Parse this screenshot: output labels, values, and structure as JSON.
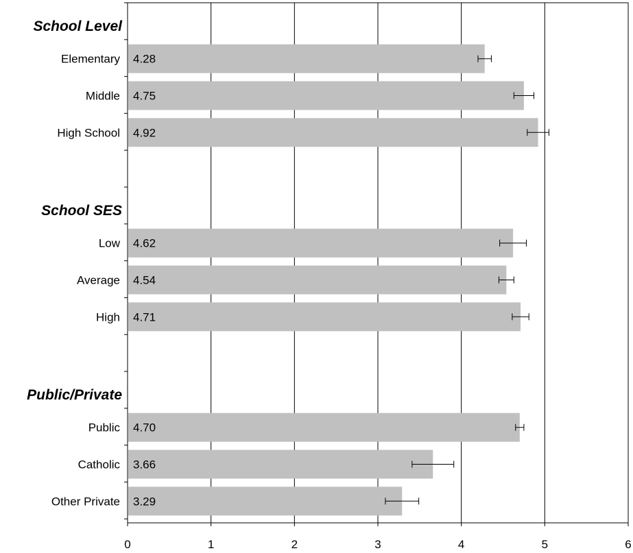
{
  "chart_data": {
    "type": "bar",
    "orientation": "horizontal",
    "xlim": [
      0,
      6
    ],
    "x_ticks": [
      "0",
      "1",
      "2",
      "3",
      "4",
      "5",
      "6"
    ],
    "grid": "vertical",
    "bar_color": "#c0c0c0",
    "groups": [
      {
        "label": "School Level",
        "categories": [
          {
            "label": "Elementary",
            "value": 4.28,
            "value_label": "4.28",
            "error": 0.08
          },
          {
            "label": "Middle",
            "value": 4.75,
            "value_label": "4.75",
            "error": 0.12
          },
          {
            "label": "High School",
            "value": 4.92,
            "value_label": "4.92",
            "error": 0.13
          }
        ]
      },
      {
        "label": "School  SES",
        "categories": [
          {
            "label": "Low",
            "value": 4.62,
            "value_label": "4.62",
            "error": 0.16
          },
          {
            "label": "Average",
            "value": 4.54,
            "value_label": "4.54",
            "error": 0.09
          },
          {
            "label": "High",
            "value": 4.71,
            "value_label": "4.71",
            "error": 0.1
          }
        ]
      },
      {
        "label": "Public/Private",
        "categories": [
          {
            "label": "Public",
            "value": 4.7,
            "value_label": "4.70",
            "error": 0.05
          },
          {
            "label": "Catholic",
            "value": 3.66,
            "value_label": "3.66",
            "error": 0.25
          },
          {
            "label": "Other Private",
            "value": 3.29,
            "value_label": "3.29",
            "error": 0.2
          }
        ]
      }
    ]
  }
}
